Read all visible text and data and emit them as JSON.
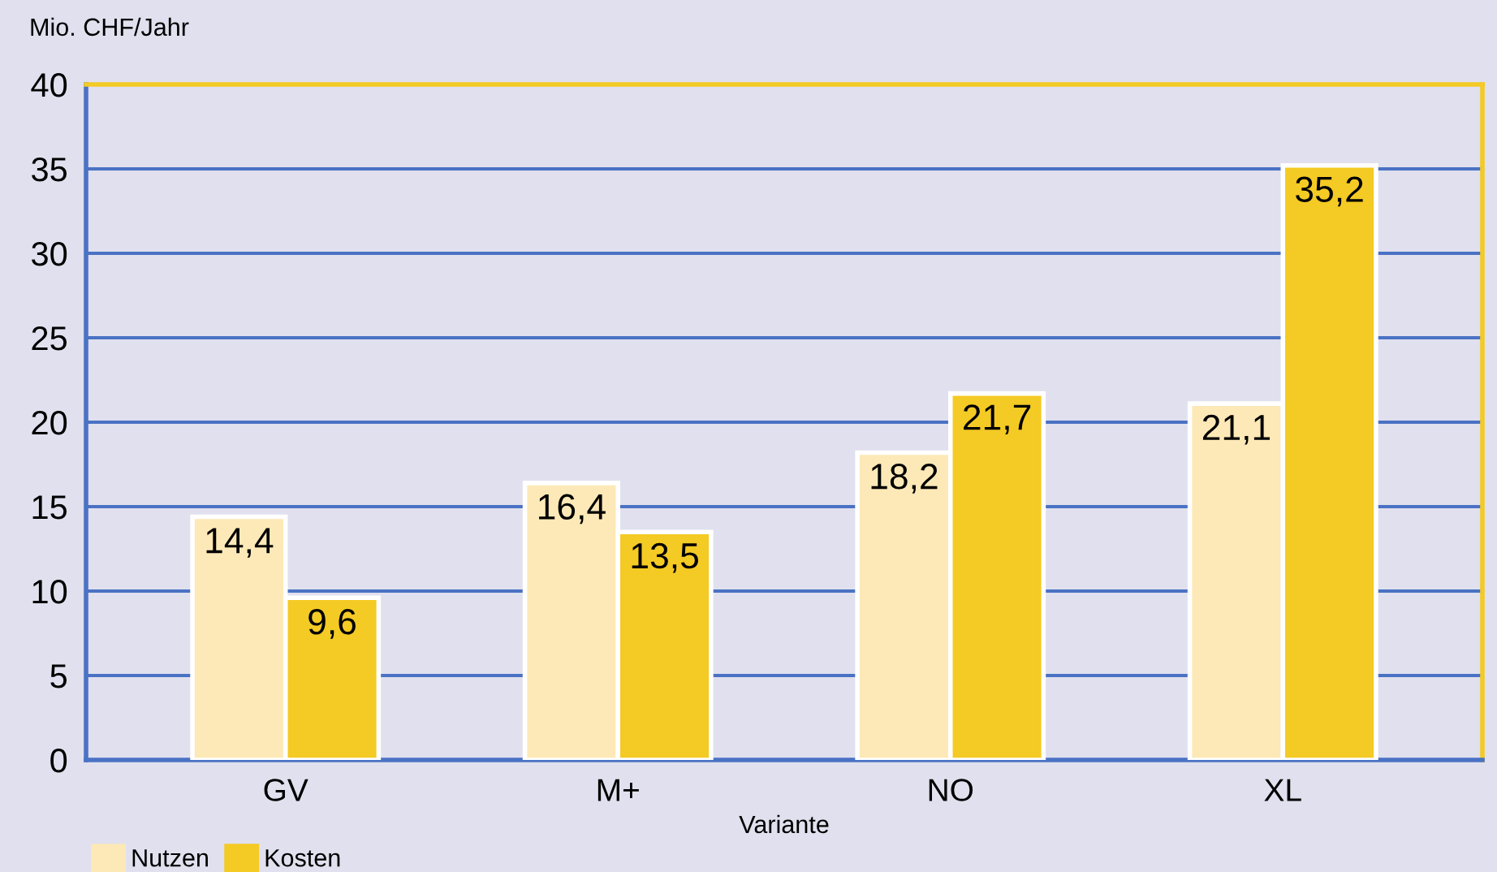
{
  "chart_data": {
    "type": "bar",
    "ylabel": "Mio. CHF/Jahr",
    "xlabel": "Variante",
    "categories": [
      "GV",
      "M+",
      "NO",
      "XL"
    ],
    "series": [
      {
        "name": "Nutzen",
        "color": "#fde9b7",
        "values": [
          14.4,
          16.4,
          18.2,
          21.1
        ],
        "value_labels": [
          "14,4",
          "16,4",
          "18,2",
          "21,1"
        ]
      },
      {
        "name": "Kosten",
        "color": "#f4ca24",
        "values": [
          9.6,
          13.5,
          21.7,
          35.2
        ],
        "value_labels": [
          "9,6",
          "13,5",
          "21,7",
          "35,2"
        ]
      }
    ],
    "ylim": [
      0,
      40
    ],
    "yticks": [
      0,
      5,
      10,
      15,
      20,
      25,
      30,
      35,
      40
    ],
    "grid": "y",
    "legend": "bottom left"
  }
}
